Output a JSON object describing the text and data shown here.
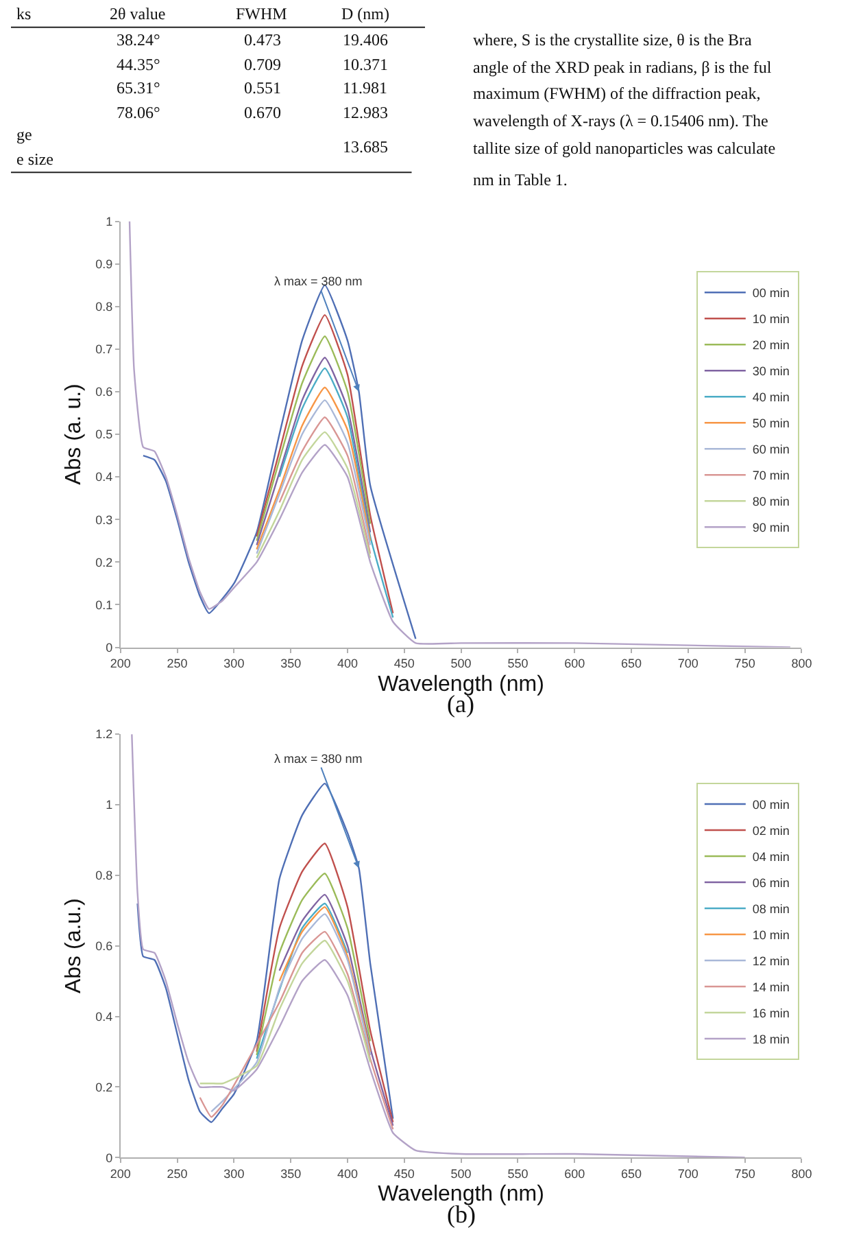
{
  "chart_data": [
    {
      "type": "other",
      "annotations": [
        "ks",
        "2θ value",
        "FWHM",
        "D (nm)",
        "38.24°",
        "0.473",
        "19.406",
        "44.35°",
        "0.709",
        "10.371",
        "65.31°",
        "0.551",
        "11.981",
        "78.06°",
        "0.670",
        "12.983",
        "ge",
        "e size",
        "13.685",
        "where, S is the crystallite size, θ is the Bra",
        "angle of the XRD peak in radians, β is the ful",
        "maximum (FWHM) of the diffraction peak,",
        "wavelength of X-rays (λ = 0.15406 nm). The",
        "tallite size of gold nanoparticles was calculate",
        "nm in Table 1."
      ]
    },
    {
      "type": "line",
      "xlabel": "Wavelength (nm)",
      "ylabel": "Abs (a. u.)",
      "annotations": [
        {
          "text": "λ max = 380 nm",
          "x": 410,
          "y": 0.6
        },
        "(a)"
      ],
      "x": [
        208,
        212,
        220,
        230,
        240,
        250,
        260,
        270,
        278,
        290,
        300,
        320,
        340,
        360,
        380,
        400,
        410,
        420,
        440,
        460,
        500,
        600,
        790
      ],
      "xlim": [
        200,
        800
      ],
      "xticks": [
        200,
        250,
        300,
        350,
        400,
        450,
        500,
        550,
        600,
        650,
        700,
        750,
        800
      ],
      "ylim": [
        0,
        1
      ],
      "yticks": [
        0,
        0.1,
        0.2,
        0.3,
        0.4,
        0.5,
        0.6,
        0.7,
        0.8,
        0.9,
        1
      ],
      "legend": "right",
      "series": [
        {
          "name": "00 min",
          "color": "#4f6fb5",
          "values": [
            null,
            null,
            0.45,
            0.44,
            0.39,
            0.3,
            0.2,
            0.12,
            0.08,
            null,
            0.15,
            0.27,
            0.5,
            0.72,
            0.85,
            0.72,
            0.6,
            0.38,
            null,
            0.02,
            null,
            null,
            null
          ]
        },
        {
          "name": "10 min",
          "color": "#c0504d",
          "values": [
            null,
            null,
            null,
            null,
            null,
            null,
            null,
            null,
            null,
            null,
            null,
            0.26,
            0.46,
            0.66,
            0.78,
            0.64,
            null,
            0.31,
            0.08,
            null,
            null,
            null,
            null
          ]
        },
        {
          "name": "20 min",
          "color": "#9bbb59",
          "values": [
            null,
            null,
            null,
            null,
            null,
            null,
            null,
            null,
            null,
            null,
            null,
            0.25,
            0.44,
            0.62,
            0.73,
            0.6,
            null,
            0.29,
            null,
            null,
            null,
            null,
            null
          ]
        },
        {
          "name": "30 min",
          "color": "#8064a2",
          "values": [
            null,
            null,
            null,
            null,
            null,
            null,
            null,
            null,
            null,
            null,
            null,
            0.24,
            0.41,
            0.58,
            0.68,
            0.56,
            null,
            0.27,
            null,
            null,
            null,
            null,
            null
          ]
        },
        {
          "name": "40 min",
          "color": "#4bacc6",
          "values": [
            null,
            null,
            null,
            null,
            null,
            null,
            null,
            null,
            null,
            null,
            null,
            null,
            0.4,
            0.56,
            0.655,
            0.54,
            null,
            0.26,
            0.07,
            null,
            null,
            null,
            null
          ]
        },
        {
          "name": "50 min",
          "color": "#f79646",
          "values": [
            null,
            null,
            null,
            null,
            null,
            null,
            null,
            null,
            null,
            null,
            null,
            0.23,
            0.37,
            0.52,
            0.61,
            0.51,
            null,
            0.25,
            null,
            null,
            null,
            null,
            null
          ]
        },
        {
          "name": "60 min",
          "color": "#a9b8d8",
          "values": [
            null,
            null,
            null,
            null,
            null,
            null,
            null,
            null,
            null,
            null,
            null,
            0.22,
            0.36,
            0.5,
            0.58,
            0.48,
            null,
            0.24,
            null,
            null,
            null,
            null,
            null
          ]
        },
        {
          "name": "70 min",
          "color": "#d99694",
          "values": [
            null,
            null,
            null,
            null,
            null,
            null,
            null,
            null,
            null,
            null,
            null,
            null,
            0.34,
            0.46,
            0.54,
            0.45,
            null,
            0.22,
            null,
            null,
            null,
            null,
            null
          ]
        },
        {
          "name": "80 min",
          "color": "#c3d69b",
          "values": [
            null,
            null,
            null,
            null,
            null,
            null,
            null,
            null,
            null,
            null,
            null,
            0.21,
            0.32,
            0.44,
            0.505,
            0.42,
            null,
            0.21,
            null,
            null,
            null,
            null,
            null
          ]
        },
        {
          "name": "90 min",
          "color": "#b3a2c7",
          "values": [
            1.0,
            0.65,
            0.47,
            0.46,
            0.4,
            0.31,
            0.21,
            0.13,
            0.09,
            0.11,
            0.14,
            0.2,
            0.3,
            0.41,
            0.475,
            0.4,
            null,
            0.2,
            0.06,
            0.01,
            0.01,
            0.01,
            0
          ]
        }
      ]
    },
    {
      "type": "line",
      "xlabel": "Wavelength (nm)",
      "ylabel": "Abs (a.u.)",
      "annotations": [
        {
          "text": "λ max = 380 nm",
          "x": 410,
          "y": 0.82
        },
        "(b)"
      ],
      "x": [
        210,
        215,
        220,
        230,
        240,
        250,
        260,
        270,
        280,
        290,
        300,
        320,
        340,
        360,
        380,
        400,
        410,
        420,
        440,
        460,
        500,
        600,
        750
      ],
      "xlim": [
        200,
        800
      ],
      "xticks": [
        200,
        250,
        300,
        350,
        400,
        450,
        500,
        550,
        600,
        650,
        700,
        750,
        800
      ],
      "ylim": [
        0,
        1.2
      ],
      "yticks": [
        0,
        0.2,
        0.4,
        0.6,
        0.8,
        1,
        1.2
      ],
      "legend": "right",
      "series": [
        {
          "name": "00 min",
          "color": "#4f6fb5",
          "values": [
            null,
            0.72,
            0.57,
            0.56,
            0.48,
            0.35,
            0.22,
            0.13,
            0.1,
            0.14,
            0.18,
            0.33,
            0.79,
            0.97,
            1.06,
            0.92,
            0.82,
            0.55,
            0.11,
            null,
            null,
            null,
            null
          ]
        },
        {
          "name": "02 min",
          "color": "#c0504d",
          "values": [
            null,
            null,
            null,
            null,
            null,
            null,
            null,
            null,
            null,
            null,
            null,
            0.3,
            0.65,
            0.81,
            0.89,
            0.71,
            null,
            0.36,
            0.1,
            null,
            null,
            null,
            null
          ]
        },
        {
          "name": "04 min",
          "color": "#9bbb59",
          "values": [
            null,
            null,
            null,
            null,
            null,
            null,
            null,
            null,
            null,
            null,
            null,
            0.29,
            0.58,
            0.73,
            0.805,
            0.65,
            null,
            0.33,
            null,
            null,
            null,
            null,
            null
          ]
        },
        {
          "name": "06 min",
          "color": "#8064a2",
          "values": [
            null,
            null,
            null,
            null,
            null,
            null,
            null,
            null,
            null,
            null,
            null,
            null,
            0.53,
            0.67,
            0.745,
            0.6,
            null,
            0.31,
            0.09,
            null,
            null,
            null,
            null
          ]
        },
        {
          "name": "08 min",
          "color": "#4bacc6",
          "values": [
            null,
            null,
            null,
            null,
            null,
            null,
            null,
            null,
            null,
            null,
            null,
            0.28,
            null,
            0.65,
            0.72,
            0.58,
            null,
            null,
            null,
            null,
            null,
            null,
            null
          ]
        },
        {
          "name": "10 min",
          "color": "#f79646",
          "values": [
            null,
            null,
            null,
            null,
            null,
            null,
            null,
            null,
            null,
            null,
            null,
            null,
            0.5,
            0.64,
            0.71,
            0.57,
            null,
            0.3,
            null,
            null,
            null,
            null,
            null
          ]
        },
        {
          "name": "12 min",
          "color": "#a9b8d8",
          "values": [
            null,
            null,
            null,
            null,
            null,
            null,
            null,
            null,
            0.13,
            0.16,
            null,
            0.27,
            0.48,
            0.62,
            0.69,
            0.56,
            null,
            0.29,
            null,
            null,
            null,
            null,
            null
          ]
        },
        {
          "name": "14 min",
          "color": "#d99694",
          "values": [
            null,
            null,
            null,
            null,
            null,
            null,
            null,
            0.17,
            0.115,
            0.15,
            null,
            null,
            0.44,
            0.58,
            0.64,
            0.52,
            null,
            0.28,
            0.08,
            null,
            null,
            null,
            null
          ]
        },
        {
          "name": "16 min",
          "color": "#c3d69b",
          "values": [
            null,
            null,
            null,
            null,
            null,
            null,
            null,
            0.21,
            0.21,
            0.21,
            null,
            0.26,
            0.42,
            0.55,
            0.615,
            0.5,
            null,
            0.27,
            null,
            null,
            null,
            null,
            null
          ]
        },
        {
          "name": "18 min",
          "color": "#b3a2c7",
          "values": [
            1.2,
            0.75,
            0.59,
            0.58,
            0.5,
            0.38,
            0.27,
            0.2,
            0.2,
            0.2,
            0.19,
            0.25,
            0.37,
            0.5,
            0.56,
            0.46,
            null,
            0.25,
            0.07,
            0.02,
            0.01,
            0.01,
            0
          ]
        }
      ]
    }
  ]
}
